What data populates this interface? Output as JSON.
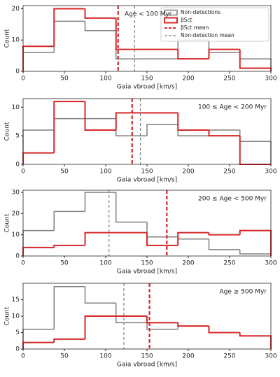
{
  "chart_data": [
    {
      "type": "histogram",
      "annotation": "Age < 100 Myr",
      "xlabel": "Gaia vbroad [km/s]",
      "ylabel": "Count",
      "bins": [
        0,
        37.5,
        75,
        112.5,
        150,
        187.5,
        225,
        262.5,
        300
      ],
      "series": [
        {
          "name": "Non-detections",
          "color": "#7f7f7f",
          "values": [
            6,
            16,
            13,
            4,
            4,
            10,
            6,
            4
          ]
        },
        {
          "name": "βSct",
          "color": "#d62728",
          "values": [
            8,
            20,
            17,
            7,
            7,
            4,
            7,
            1
          ]
        }
      ],
      "means": [
        {
          "name": "βSct mean",
          "color": "#d62728",
          "value": 115
        },
        {
          "name": "Non-detection mean",
          "color": "#7f7f7f",
          "value": 135
        }
      ],
      "legend": "upper right",
      "xlim": [
        0,
        300
      ],
      "xticks": [
        0,
        50,
        100,
        150,
        200,
        250,
        300
      ],
      "ylim": [
        0,
        21
      ],
      "yticks": [
        0,
        10,
        20
      ]
    },
    {
      "type": "histogram",
      "annotation": "100 ≤ Age < 200 Myr",
      "xlabel": "Gaia vbroad [km/s]",
      "ylabel": "Count",
      "bins": [
        0,
        37.5,
        75,
        112.5,
        150,
        187.5,
        225,
        262.5,
        300
      ],
      "series": [
        {
          "color": "#7f7f7f",
          "values": [
            6,
            8,
            8,
            5,
            7,
            5,
            6,
            4
          ]
        },
        {
          "color": "#d62728",
          "values": [
            2,
            11,
            6,
            9,
            9,
            6,
            5,
            0
          ]
        }
      ],
      "means": [
        {
          "color": "#d62728",
          "value": 132
        },
        {
          "color": "#7f7f7f",
          "value": 142
        }
      ],
      "xlim": [
        0,
        300
      ],
      "xticks": [
        0,
        50,
        100,
        150,
        200,
        250,
        300
      ],
      "ylim": [
        0,
        11.5
      ],
      "yticks": [
        0,
        5,
        10
      ]
    },
    {
      "type": "histogram",
      "annotation": "200 ≤ Age < 500 Myr",
      "xlabel": "Gaia vbroad [km/s]",
      "ylabel": "Count",
      "bins": [
        0,
        37.5,
        75,
        112.5,
        150,
        187.5,
        225,
        262.5,
        300
      ],
      "series": [
        {
          "color": "#7f7f7f",
          "values": [
            12,
            21,
            30,
            16,
            9,
            8,
            3,
            1
          ]
        },
        {
          "color": "#d62728",
          "values": [
            4,
            5,
            11,
            11,
            5,
            11,
            10,
            12
          ]
        }
      ],
      "means": [
        {
          "color": "#d62728",
          "value": 174
        },
        {
          "color": "#7f7f7f",
          "value": 104
        }
      ],
      "xlim": [
        0,
        300
      ],
      "xticks": [
        0,
        50,
        100,
        150,
        200,
        250,
        300
      ],
      "ylim": [
        0,
        31
      ],
      "yticks": [
        0,
        10,
        20,
        30
      ]
    },
    {
      "type": "histogram",
      "annotation": "Age ≥ 500 Myr",
      "xlabel": "Gaia vbroad [km/s]",
      "ylabel": "Count",
      "bins": [
        0,
        37.5,
        75,
        112.5,
        150,
        187.5,
        225,
        262.5,
        300
      ],
      "series": [
        {
          "color": "#7f7f7f",
          "values": [
            6,
            19,
            14,
            8,
            6,
            7,
            5,
            4
          ]
        },
        {
          "color": "#d62728",
          "values": [
            2,
            3,
            10,
            10,
            8,
            7,
            5,
            4
          ]
        }
      ],
      "means": [
        {
          "color": "#7f7f7f",
          "value": 122
        },
        {
          "color": "#d62728",
          "value": 153
        }
      ],
      "xlim": [
        0,
        300
      ],
      "xticks": [
        0,
        50,
        100,
        150,
        200,
        250,
        300
      ],
      "ylim": [
        0,
        20
      ],
      "yticks": [
        0,
        5,
        10,
        15
      ]
    }
  ]
}
